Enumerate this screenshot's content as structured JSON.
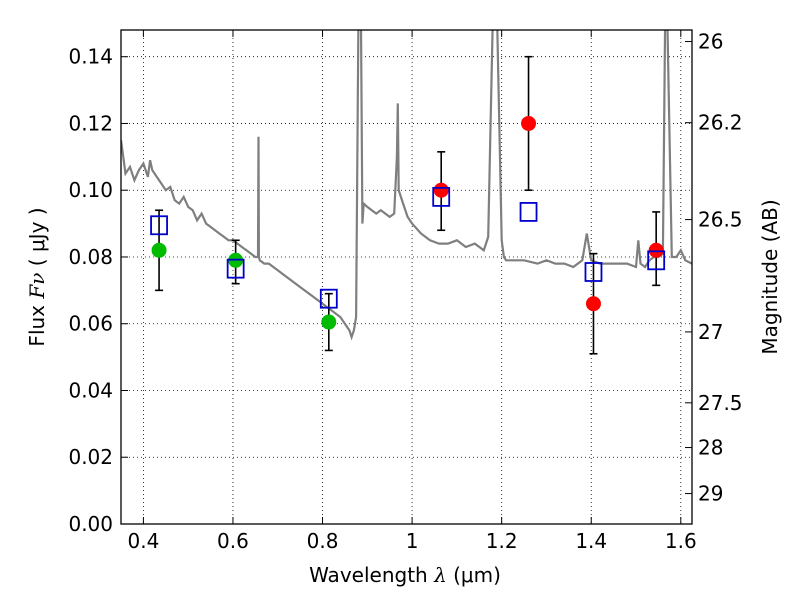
{
  "chart_data": {
    "type": "scatter",
    "xlabel_text": "Wavelength",
    "xlabel_symbol": "λ",
    "xlabel_unit": "(μm)",
    "ylabel_text": "Flux",
    "ylabel_symbol": "Fν",
    "ylabel_unit": "( μJy )",
    "y2label": "Magnitude (AB)",
    "xlim": [
      0.35,
      1.625
    ],
    "ylim": [
      0.0,
      0.148
    ],
    "grid": true,
    "x_ticks": [
      "0.4",
      "0.6",
      "0.8",
      "1",
      "1.2",
      "1.4",
      "1.6"
    ],
    "y_ticks": [
      "0.00",
      "0.02",
      "0.04",
      "0.06",
      "0.08",
      "0.10",
      "0.12",
      "0.14"
    ],
    "y2_ticks": [
      "26",
      "26.2",
      "26.5",
      "27",
      "27.5",
      "28",
      "29"
    ],
    "series": [
      {
        "marker": "circle",
        "color": "#00bb00",
        "points": [
          {
            "x": 0.435,
            "y": 0.082,
            "err_lo": 0.07,
            "err_hi": 0.094
          },
          {
            "x": 0.606,
            "y": 0.079,
            "err_lo": 0.072,
            "err_hi": 0.085
          },
          {
            "x": 0.814,
            "y": 0.0605,
            "err_lo": 0.052,
            "err_hi": 0.069
          }
        ]
      },
      {
        "marker": "circle",
        "color": "#ff0000",
        "points": [
          {
            "x": 1.065,
            "y": 0.1,
            "err_lo": 0.088,
            "err_hi": 0.1115
          },
          {
            "x": 1.26,
            "y": 0.12,
            "err_lo": 0.1,
            "err_hi": 0.14
          },
          {
            "x": 1.405,
            "y": 0.066,
            "err_lo": 0.051,
            "err_hi": 0.081
          },
          {
            "x": 1.545,
            "y": 0.082,
            "err_lo": 0.0715,
            "err_hi": 0.0935
          }
        ]
      },
      {
        "marker": "open-square",
        "color": "#0000cc",
        "points": [
          {
            "x": 0.435,
            "y": 0.0895
          },
          {
            "x": 0.606,
            "y": 0.0765
          },
          {
            "x": 0.814,
            "y": 0.0675
          },
          {
            "x": 1.065,
            "y": 0.098
          },
          {
            "x": 1.26,
            "y": 0.0935
          },
          {
            "x": 1.405,
            "y": 0.0755
          },
          {
            "x": 1.545,
            "y": 0.079
          }
        ]
      }
    ],
    "model_spectrum": {
      "color": "#7f7f7f",
      "x": [
        0.35,
        0.36,
        0.37,
        0.38,
        0.39,
        0.4,
        0.41,
        0.415,
        0.42,
        0.43,
        0.44,
        0.45,
        0.46,
        0.47,
        0.48,
        0.49,
        0.5,
        0.51,
        0.52,
        0.53,
        0.54,
        0.55,
        0.56,
        0.57,
        0.58,
        0.59,
        0.6,
        0.61,
        0.62,
        0.63,
        0.64,
        0.65,
        0.656,
        0.657,
        0.658,
        0.66,
        0.67,
        0.68,
        0.7,
        0.72,
        0.74,
        0.76,
        0.78,
        0.8,
        0.82,
        0.84,
        0.85,
        0.86,
        0.865,
        0.87,
        0.875,
        0.88,
        0.883,
        0.886,
        0.889,
        0.892,
        0.9,
        0.91,
        0.92,
        0.93,
        0.95,
        0.96,
        0.966,
        0.968,
        0.97,
        0.98,
        0.99,
        1.0,
        1.02,
        1.04,
        1.06,
        1.08,
        1.1,
        1.12,
        1.14,
        1.16,
        1.17,
        1.18,
        1.185,
        1.19,
        1.2,
        1.205,
        1.21,
        1.22,
        1.25,
        1.28,
        1.3,
        1.32,
        1.34,
        1.36,
        1.38,
        1.39,
        1.4,
        1.42,
        1.45,
        1.48,
        1.5,
        1.505,
        1.51,
        1.52,
        1.53,
        1.54,
        1.55,
        1.56,
        1.565,
        1.57,
        1.58,
        1.59,
        1.6,
        1.61,
        1.625
      ],
      "y": [
        0.115,
        0.105,
        0.107,
        0.103,
        0.106,
        0.108,
        0.104,
        0.109,
        0.106,
        0.104,
        0.102,
        0.1,
        0.101,
        0.097,
        0.096,
        0.098,
        0.095,
        0.094,
        0.091,
        0.093,
        0.09,
        0.089,
        0.088,
        0.087,
        0.086,
        0.085,
        0.085,
        0.084,
        0.083,
        0.082,
        0.081,
        0.08,
        0.08,
        0.116,
        0.08,
        0.079,
        0.078,
        0.078,
        0.076,
        0.074,
        0.072,
        0.07,
        0.068,
        0.066,
        0.064,
        0.062,
        0.06,
        0.058,
        0.056,
        0.058,
        0.062,
        0.15,
        0.15,
        0.15,
        0.09,
        0.096,
        0.095,
        0.094,
        0.093,
        0.094,
        0.092,
        0.093,
        0.11,
        0.126,
        0.1,
        0.096,
        0.092,
        0.09,
        0.087,
        0.085,
        0.084,
        0.084,
        0.085,
        0.083,
        0.084,
        0.082,
        0.086,
        0.15,
        0.15,
        0.15,
        0.085,
        0.08,
        0.079,
        0.079,
        0.079,
        0.078,
        0.079,
        0.078,
        0.078,
        0.077,
        0.079,
        0.087,
        0.079,
        0.078,
        0.078,
        0.078,
        0.077,
        0.085,
        0.078,
        0.077,
        0.079,
        0.08,
        0.08,
        0.081,
        0.15,
        0.15,
        0.08,
        0.08,
        0.082,
        0.079,
        0.078
      ]
    }
  }
}
